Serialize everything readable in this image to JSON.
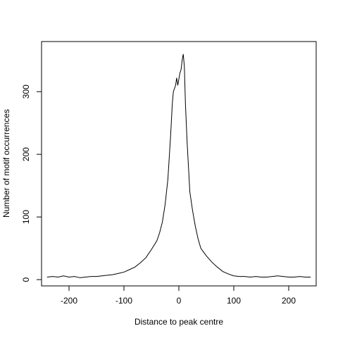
{
  "chart_data": {
    "type": "line",
    "title": "",
    "xlabel": "Distance to peak centre",
    "ylabel": "Number of motif occurrences",
    "xlim": [
      -250,
      250
    ],
    "ylim": [
      -10,
      380
    ],
    "xticks": [
      -200,
      -100,
      0,
      100,
      200
    ],
    "yticks": [
      0,
      100,
      200,
      300
    ],
    "grid": false,
    "legend": "none",
    "series": [
      {
        "name": "",
        "color": "#000000",
        "x": [
          -240,
          -230,
          -220,
          -210,
          -200,
          -190,
          -180,
          -170,
          -160,
          -150,
          -140,
          -130,
          -120,
          -110,
          -100,
          -90,
          -80,
          -70,
          -60,
          -50,
          -40,
          -35,
          -30,
          -25,
          -20,
          -15,
          -12,
          -10,
          -8,
          -6,
          -4,
          -2,
          0,
          2,
          4,
          6,
          8,
          10,
          12,
          15,
          20,
          25,
          30,
          35,
          40,
          50,
          60,
          70,
          80,
          90,
          100,
          110,
          120,
          130,
          140,
          150,
          160,
          170,
          180,
          190,
          200,
          210,
          220,
          230,
          240
        ],
        "y": [
          4,
          5,
          4,
          6,
          4,
          5,
          3,
          4,
          5,
          5,
          6,
          7,
          8,
          10,
          12,
          16,
          20,
          27,
          35,
          48,
          62,
          75,
          92,
          120,
          160,
          230,
          280,
          300,
          305,
          310,
          322,
          310,
          320,
          330,
          335,
          350,
          360,
          340,
          280,
          220,
          140,
          110,
          85,
          65,
          50,
          38,
          28,
          20,
          13,
          9,
          6,
          5,
          5,
          4,
          5,
          4,
          4,
          5,
          6,
          5,
          4,
          4,
          5,
          4,
          4
        ]
      }
    ]
  }
}
